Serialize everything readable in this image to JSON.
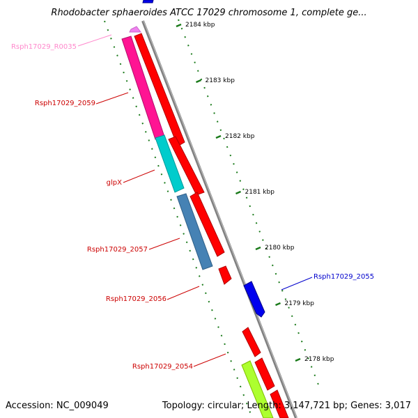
{
  "title": "Rhodobacter sphaeroides ATCC 17029 chromosome 1, complete ge...",
  "accession": "Accession: NC_009049",
  "summary": "Topology: circular; Length: 3,147,721 bp; Genes: 3,017",
  "colors": {
    "backbone": "#808080",
    "tick": "#1a7a1a",
    "red": "#ff0000",
    "blue": "#0000ee",
    "pink": "#ff1493",
    "teal": "#00cccc",
    "steel": "#4682b4",
    "lime": "#adff2f",
    "light_pink": "#ee82ee"
  },
  "ticks": [
    {
      "label": "2184 kbp"
    },
    {
      "label": "2183 kbp"
    },
    {
      "label": "2182 kbp"
    },
    {
      "label": "2181 kbp"
    },
    {
      "label": "2180 kbp"
    },
    {
      "label": "2179 kbp"
    },
    {
      "label": "2178 kbp"
    }
  ],
  "gene_labels": [
    {
      "text": "Rsph17029_R0035",
      "color": "#ff88cc"
    },
    {
      "text": "Rsph17029_2059",
      "color": "#cc0000"
    },
    {
      "text": "glpX",
      "color": "#cc0000"
    },
    {
      "text": "Rsph17029_2057",
      "color": "#cc0000"
    },
    {
      "text": "Rsph17029_2056",
      "color": "#cc0000"
    },
    {
      "text": "Rsph17029_2055",
      "color": "#0000cc"
    },
    {
      "text": "Rsph17029_2054",
      "color": "#cc0000"
    }
  ]
}
